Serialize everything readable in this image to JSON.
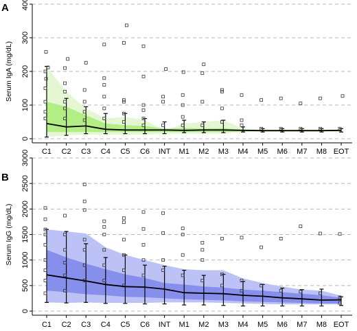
{
  "chart_data": [
    {
      "type": "line",
      "panel_label": "A",
      "ylabel": "Serum IgA (mg/dL)",
      "ylim": [
        0,
        400
      ],
      "yticks": [
        0,
        100,
        200,
        300,
        400
      ],
      "grid": "horizontal-dashed",
      "categories": [
        "C1",
        "C2",
        "C3",
        "C4",
        "C5",
        "C6",
        "INT",
        "M1",
        "M2",
        "M3",
        "M4",
        "M5",
        "M6",
        "M7",
        "M8",
        "EOT"
      ],
      "colors": {
        "outer_band": "#e4f7d2",
        "inner_band": "#a9ec77",
        "line": "#000000"
      },
      "median": [
        45,
        35,
        38,
        28,
        26,
        26,
        26,
        25,
        26,
        26,
        25,
        24,
        24,
        24,
        24,
        25
      ],
      "whisker_low": [
        5,
        10,
        15,
        15,
        15,
        15,
        15,
        18,
        18,
        18,
        20,
        20,
        20,
        20,
        20,
        20
      ],
      "whisker_high": [
        215,
        120,
        95,
        75,
        75,
        60,
        50,
        55,
        50,
        55,
        35,
        30,
        30,
        30,
        30,
        30
      ],
      "outer_band_low": [
        5,
        10,
        12,
        12,
        12,
        12,
        15,
        15,
        15,
        15,
        20,
        20,
        20,
        20,
        20,
        20
      ],
      "outer_band_high": [
        215,
        140,
        90,
        60,
        65,
        55,
        25,
        45,
        50,
        55,
        30,
        26,
        26,
        26,
        26,
        26
      ],
      "inner_band_low": [
        20,
        20,
        20,
        20,
        20,
        20,
        20,
        20,
        20,
        20,
        22,
        22,
        22,
        22,
        22,
        22
      ],
      "inner_band_high": [
        110,
        95,
        70,
        45,
        40,
        38,
        30,
        32,
        30,
        32,
        26,
        25,
        25,
        25,
        25,
        25
      ],
      "outliers": [
        [
          0,
          258
        ],
        [
          0,
          212
        ],
        [
          0,
          200
        ],
        [
          0,
          178
        ],
        [
          0,
          150
        ],
        [
          0,
          110
        ],
        [
          0,
          80
        ],
        [
          0,
          60
        ],
        [
          1,
          237
        ],
        [
          1,
          210
        ],
        [
          1,
          165
        ],
        [
          1,
          140
        ],
        [
          1,
          110
        ],
        [
          1,
          90
        ],
        [
          1,
          60
        ],
        [
          2,
          226
        ],
        [
          2,
          145
        ],
        [
          2,
          110
        ],
        [
          2,
          80
        ],
        [
          2,
          55
        ],
        [
          3,
          280
        ],
        [
          3,
          180
        ],
        [
          3,
          160
        ],
        [
          3,
          125
        ],
        [
          3,
          90
        ],
        [
          3,
          60
        ],
        [
          4,
          337
        ],
        [
          4,
          285
        ],
        [
          4,
          115
        ],
        [
          4,
          110
        ],
        [
          4,
          75
        ],
        [
          4,
          50
        ],
        [
          5,
          275
        ],
        [
          5,
          185
        ],
        [
          5,
          100
        ],
        [
          5,
          85
        ],
        [
          5,
          60
        ],
        [
          5,
          40
        ],
        [
          6,
          207
        ],
        [
          6,
          125
        ],
        [
          6,
          110
        ],
        [
          6,
          40
        ],
        [
          7,
          198
        ],
        [
          7,
          130
        ],
        [
          7,
          100
        ],
        [
          7,
          65
        ],
        [
          7,
          40
        ],
        [
          8,
          221
        ],
        [
          8,
          195
        ],
        [
          8,
          110
        ],
        [
          8,
          40
        ],
        [
          9,
          145
        ],
        [
          9,
          140
        ],
        [
          9,
          90
        ],
        [
          9,
          50
        ],
        [
          10,
          130
        ],
        [
          10,
          55
        ],
        [
          10,
          40
        ],
        [
          11,
          115
        ],
        [
          11,
          30
        ],
        [
          12,
          120
        ],
        [
          12,
          30
        ],
        [
          13,
          105
        ],
        [
          13,
          30
        ],
        [
          14,
          120
        ],
        [
          14,
          30
        ],
        [
          15,
          127
        ],
        [
          15,
          30
        ]
      ]
    },
    {
      "type": "line",
      "panel_label": "B",
      "ylabel": "Serum IgG (mg/dL)",
      "ylim": [
        0,
        3000
      ],
      "yticks": [
        0,
        500,
        1000,
        1500,
        2000,
        2500,
        3000
      ],
      "grid": "horizontal-dashed",
      "categories": [
        "C1",
        "C2",
        "C3",
        "C4",
        "C5",
        "C6",
        "INT",
        "M1",
        "M2",
        "M3",
        "M4",
        "M5",
        "M6",
        "M7",
        "M8",
        "EOT"
      ],
      "colors": {
        "outer_band": "#bcc2f5",
        "inner_band": "#7e86ea",
        "line": "#000000"
      },
      "median": [
        710,
        650,
        590,
        520,
        480,
        470,
        430,
        360,
        350,
        340,
        310,
        290,
        260,
        240,
        215,
        220
      ],
      "whisker_low": [
        170,
        160,
        170,
        150,
        150,
        140,
        140,
        120,
        120,
        110,
        100,
        100,
        100,
        100,
        100,
        110
      ],
      "whisker_high": [
        1600,
        1560,
        1320,
        1050,
        1100,
        900,
        880,
        800,
        700,
        720,
        580,
        520,
        450,
        420,
        430,
        280
      ],
      "outer_band_low": [
        170,
        160,
        170,
        160,
        160,
        160,
        170,
        170,
        170,
        160,
        150,
        140,
        130,
        130,
        130,
        130
      ],
      "outer_band_high": [
        1600,
        1560,
        1520,
        1250,
        1100,
        1000,
        900,
        820,
        800,
        800,
        640,
        550,
        480,
        420,
        400,
        300
      ],
      "inner_band_low": [
        400,
        370,
        330,
        310,
        280,
        270,
        250,
        230,
        220,
        210,
        190,
        180,
        170,
        160,
        150,
        150
      ],
      "inner_band_high": [
        1200,
        1050,
        930,
        820,
        720,
        650,
        550,
        520,
        480,
        460,
        420,
        400,
        370,
        340,
        310,
        260
      ],
      "outliers": [
        [
          0,
          2020
        ],
        [
          0,
          1800
        ],
        [
          0,
          1600
        ],
        [
          0,
          1500
        ],
        [
          0,
          1300
        ],
        [
          0,
          1000
        ],
        [
          0,
          800
        ],
        [
          0,
          600
        ],
        [
          0,
          350
        ],
        [
          1,
          1870
        ],
        [
          1,
          1500
        ],
        [
          1,
          1200
        ],
        [
          1,
          950
        ],
        [
          1,
          700
        ],
        [
          1,
          400
        ],
        [
          2,
          2480
        ],
        [
          2,
          2150
        ],
        [
          2,
          1980
        ],
        [
          2,
          1400
        ],
        [
          2,
          1200
        ],
        [
          2,
          900
        ],
        [
          2,
          600
        ],
        [
          3,
          1760
        ],
        [
          3,
          1650
        ],
        [
          3,
          1500
        ],
        [
          3,
          1200
        ],
        [
          3,
          900
        ],
        [
          3,
          600
        ],
        [
          4,
          1820
        ],
        [
          4,
          1740
        ],
        [
          4,
          1400
        ],
        [
          4,
          1100
        ],
        [
          4,
          800
        ],
        [
          4,
          500
        ],
        [
          5,
          1940
        ],
        [
          5,
          1610
        ],
        [
          5,
          1300
        ],
        [
          5,
          1000
        ],
        [
          5,
          700
        ],
        [
          6,
          1920
        ],
        [
          6,
          1530
        ],
        [
          6,
          1000
        ],
        [
          6,
          800
        ],
        [
          7,
          1620
        ],
        [
          7,
          1500
        ],
        [
          7,
          1100
        ],
        [
          7,
          700
        ],
        [
          8,
          1340
        ],
        [
          8,
          1200
        ],
        [
          8,
          1000
        ],
        [
          8,
          600
        ],
        [
          9,
          1420
        ],
        [
          9,
          720
        ],
        [
          9,
          500
        ],
        [
          10,
          1440
        ],
        [
          10,
          600
        ],
        [
          10,
          400
        ],
        [
          11,
          1250
        ],
        [
          11,
          500
        ],
        [
          12,
          1420
        ],
        [
          12,
          400
        ],
        [
          13,
          1660
        ],
        [
          13,
          380
        ],
        [
          14,
          1520
        ],
        [
          14,
          350
        ],
        [
          15,
          1510
        ],
        [
          15,
          270
        ],
        [
          15,
          160
        ]
      ]
    }
  ]
}
